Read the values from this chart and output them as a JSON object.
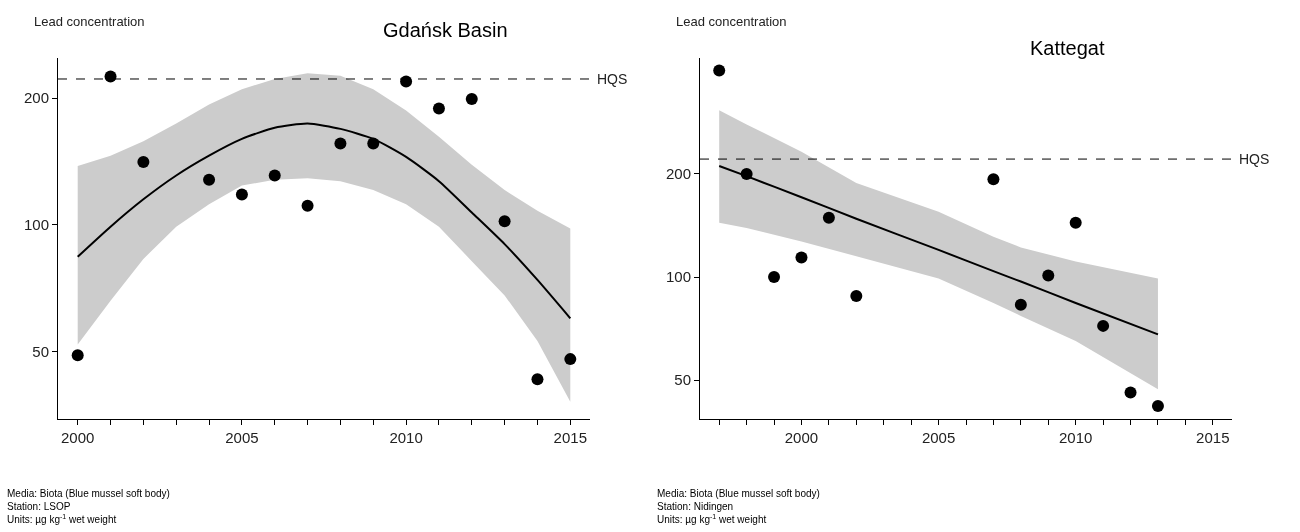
{
  "chart_data": [
    {
      "type": "scatter",
      "title": "Gdańsk Basin",
      "ylabel": "Lead concentration",
      "log": true,
      "xlim": [
        1999.4,
        2015.6
      ],
      "xticks": [
        2000,
        {
          "value": 2001,
          "label": null
        },
        {
          "value": 2002,
          "label": null
        },
        {
          "value": 2003,
          "label": null
        },
        {
          "value": 2004,
          "label": null
        },
        2005,
        {
          "value": 2006,
          "label": null
        },
        {
          "value": 2007,
          "label": null
        },
        {
          "value": 2008,
          "label": null
        },
        {
          "value": 2009,
          "label": null
        },
        2010,
        {
          "value": 2011,
          "label": null
        },
        {
          "value": 2012,
          "label": null
        },
        {
          "value": 2013,
          "label": null
        },
        {
          "value": 2014,
          "label": null
        },
        2015
      ],
      "ylim": [
        34.6,
        249
      ],
      "yticks": [
        50,
        100,
        200
      ],
      "series": [
        {
          "marker": "circle",
          "color": "#000000",
          "x": [
            2000,
            2001,
            2002,
            2004,
            2005,
            2006,
            2007,
            2008,
            2009,
            2010,
            2011,
            2012,
            2013,
            2014,
            2015
          ],
          "values": [
            49,
            225,
            141,
            128,
            118,
            131,
            111,
            156,
            156,
            219,
            189,
            199,
            102,
            43,
            48
          ]
        },
        {
          "type": "line",
          "color": "#000000",
          "line_style": "solid",
          "x": [
            2000,
            2001,
            2002,
            2003,
            2004,
            2005,
            2006,
            2007,
            2008,
            2009,
            2010,
            2011,
            2012,
            2013,
            2014,
            2015
          ],
          "values": [
            84,
            99,
            115,
            131,
            146,
            160,
            170,
            174,
            169,
            160,
            145,
            127,
            107,
            90,
            74,
            60
          ],
          "lower": [
            52,
            66,
            83,
            99,
            112,
            124,
            128,
            129,
            127,
            121,
            112,
            99,
            82,
            68,
            53,
            38
          ],
          "upper": [
            138,
            146,
            158,
            174,
            193,
            210,
            222,
            229,
            226,
            210,
            187,
            162,
            139,
            121,
            108,
            98
          ]
        }
      ],
      "ref_lines": [
        {
          "axis": "y",
          "value": 222,
          "label": "HQS",
          "color": "#000000",
          "line_style": "dashed"
        }
      ],
      "annotations": [
        "Media: Biota (Blue mussel soft body)",
        "Station: LSOP",
        "Units: µg kg$^{-1}$ wet weight"
      ]
    },
    {
      "type": "scatter",
      "title": "Kattegat",
      "ylabel": "Lead concentration",
      "log": true,
      "xlim": [
        1996.3,
        2015.7
      ],
      "xticks": [
        {
          "value": 1997,
          "label": null
        },
        {
          "value": 1998,
          "label": null
        },
        {
          "value": 1999,
          "label": null
        },
        2000,
        {
          "value": 2001,
          "label": null
        },
        {
          "value": 2002,
          "label": null
        },
        {
          "value": 2003,
          "label": null
        },
        {
          "value": 2004,
          "label": null
        },
        2005,
        {
          "value": 2006,
          "label": null
        },
        {
          "value": 2007,
          "label": null
        },
        {
          "value": 2008,
          "label": null
        },
        {
          "value": 2009,
          "label": null
        },
        2010,
        {
          "value": 2011,
          "label": null
        },
        {
          "value": 2012,
          "label": null
        },
        {
          "value": 2013,
          "label": null
        },
        {
          "value": 2014,
          "label": null
        },
        2015
      ],
      "ylim": [
        38.5,
        436
      ],
      "yticks": [
        50,
        100,
        200
      ],
      "series": [
        {
          "marker": "circle",
          "color": "#000000",
          "x": [
            1997,
            1998,
            1999,
            2000,
            2001,
            2002,
            2007,
            2008,
            2009,
            2010,
            2011,
            2012,
            2013
          ],
          "values": [
            401,
            200,
            100,
            114,
            149,
            88,
            193,
            83,
            101,
            144,
            72,
            46,
            42
          ]
        },
        {
          "type": "line",
          "color": "#000000",
          "line_style": "solid",
          "x": [
            1997,
            1998,
            2000,
            2002,
            2005,
            2007,
            2008,
            2010,
            2013
          ],
          "values": [
            211,
            197,
            171,
            148,
            120,
            104,
            97,
            84,
            68
          ],
          "lower": [
            144,
            139,
            127,
            115,
            99,
            84,
            77,
            65,
            47
          ],
          "upper": [
            307,
            279,
            232,
            188,
            155,
            131,
            122,
            111,
            99
          ]
        }
      ],
      "ref_lines": [
        {
          "axis": "y",
          "value": 221,
          "label": "HQS",
          "color": "#000000",
          "line_style": "dashed"
        }
      ],
      "annotations": [
        "Media: Biota (Blue mussel soft body)",
        "Station: Nidingen",
        "Units: µg kg$^{-1}$ wet weight"
      ]
    }
  ]
}
